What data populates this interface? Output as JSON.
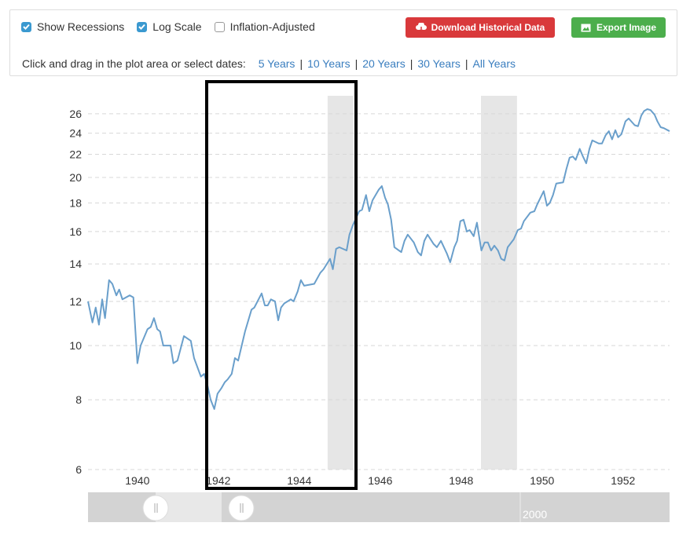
{
  "controls": {
    "checkboxes": [
      {
        "label": "Show Recessions",
        "checked": true
      },
      {
        "label": "Log Scale",
        "checked": true
      },
      {
        "label": "Inflation-Adjusted",
        "checked": false
      }
    ],
    "buttons": [
      {
        "label": "Download Historical Data",
        "color": "#d9393b"
      },
      {
        "label": "Export Image",
        "color": "#4cae4c"
      }
    ],
    "prompt": "Click and drag in the plot area or select dates:",
    "ranges": [
      "5 Years",
      "10 Years",
      "20 Years",
      "30 Years",
      "All Years"
    ],
    "separator": "|"
  },
  "chart_data": {
    "type": "line",
    "log_scale": true,
    "grid": true,
    "xlim": [
      1938.78,
      1953.15
    ],
    "xticks": [
      1940,
      1942,
      1944,
      1946,
      1948,
      1950,
      1952
    ],
    "ylim": [
      6,
      28
    ],
    "yticks": [
      6,
      8,
      10,
      12,
      14,
      16,
      18,
      20,
      22,
      24,
      26
    ],
    "recessions": [
      [
        1944.7,
        1945.34
      ],
      [
        1948.49,
        1949.38
      ]
    ],
    "recession_color": "#e6e6e6",
    "x": [
      1938.78,
      1938.89,
      1938.97,
      1939.05,
      1939.13,
      1939.2,
      1939.3,
      1939.38,
      1939.48,
      1939.55,
      1939.63,
      1939.81,
      1939.9,
      1940.0,
      1940.08,
      1940.25,
      1940.33,
      1940.41,
      1940.49,
      1940.56,
      1940.64,
      1940.82,
      1940.89,
      1940.99,
      1941.15,
      1941.32,
      1941.4,
      1941.57,
      1941.65,
      1941.73,
      1941.81,
      1941.9,
      1941.98,
      1942.08,
      1942.16,
      1942.23,
      1942.33,
      1942.41,
      1942.49,
      1942.66,
      1942.82,
      1942.89,
      1943.07,
      1943.15,
      1943.22,
      1943.3,
      1943.4,
      1943.48,
      1943.55,
      1943.63,
      1943.79,
      1943.86,
      1943.96,
      1944.04,
      1944.12,
      1944.37,
      1944.52,
      1944.6,
      1944.76,
      1944.83,
      1944.91,
      1944.99,
      1945.17,
      1945.24,
      1945.32,
      1945.48,
      1945.55,
      1945.65,
      1945.73,
      1945.81,
      1945.96,
      1946.04,
      1946.12,
      1946.19,
      1946.27,
      1946.35,
      1946.52,
      1946.6,
      1946.68,
      1946.83,
      1946.93,
      1947.01,
      1947.09,
      1947.17,
      1947.32,
      1947.4,
      1947.5,
      1947.65,
      1947.73,
      1947.83,
      1947.9,
      1947.98,
      1948.06,
      1948.14,
      1948.21,
      1948.31,
      1948.39,
      1948.5,
      1948.58,
      1948.66,
      1948.74,
      1948.82,
      1948.91,
      1948.99,
      1949.07,
      1949.15,
      1949.3,
      1949.4,
      1949.48,
      1949.55,
      1949.71,
      1949.81,
      1949.88,
      1950.04,
      1950.12,
      1950.19,
      1950.27,
      1950.35,
      1950.52,
      1950.6,
      1950.68,
      1950.76,
      1950.83,
      1950.93,
      1951.01,
      1951.09,
      1951.17,
      1951.24,
      1951.4,
      1951.48,
      1951.57,
      1951.65,
      1951.73,
      1951.81,
      1951.88,
      1951.96,
      1952.06,
      1952.14,
      1952.29,
      1952.37,
      1952.45,
      1952.52,
      1952.6,
      1952.68,
      1952.78,
      1952.85,
      1952.93,
      1953.01,
      1953.15
    ],
    "series": [
      {
        "color": "#6a9fcb",
        "values": [
          12.0,
          11.0,
          11.7,
          10.9,
          12.1,
          11.2,
          13.1,
          12.9,
          12.3,
          12.6,
          12.1,
          12.3,
          12.2,
          9.3,
          10.0,
          10.7,
          10.8,
          11.2,
          10.7,
          10.6,
          10.0,
          10.0,
          9.3,
          9.4,
          10.4,
          10.2,
          9.5,
          8.8,
          8.9,
          8.5,
          8.0,
          7.7,
          8.2,
          8.4,
          8.6,
          8.7,
          8.9,
          9.5,
          9.4,
          10.6,
          11.6,
          11.7,
          12.4,
          11.8,
          11.8,
          12.1,
          12.0,
          11.1,
          11.7,
          11.9,
          12.1,
          12.0,
          12.5,
          13.1,
          12.8,
          12.9,
          13.5,
          13.7,
          14.3,
          13.7,
          14.9,
          15.0,
          14.8,
          15.8,
          16.4,
          17.4,
          17.5,
          18.6,
          17.4,
          18.2,
          19.0,
          19.3,
          18.4,
          17.9,
          16.8,
          15.0,
          14.7,
          15.4,
          15.8,
          15.3,
          14.7,
          14.5,
          15.4,
          15.8,
          15.2,
          15.0,
          15.4,
          14.6,
          14.1,
          15.0,
          15.4,
          16.7,
          16.8,
          16.0,
          16.1,
          15.7,
          16.6,
          14.8,
          15.3,
          15.3,
          14.8,
          15.1,
          14.8,
          14.3,
          14.2,
          15.0,
          15.5,
          16.1,
          16.2,
          16.7,
          17.3,
          17.4,
          17.9,
          18.9,
          17.8,
          18.0,
          18.6,
          19.5,
          19.6,
          20.7,
          21.7,
          21.8,
          21.5,
          22.5,
          21.8,
          21.2,
          22.5,
          23.3,
          23.0,
          23.0,
          23.8,
          24.2,
          23.4,
          24.3,
          23.6,
          23.9,
          25.2,
          25.5,
          24.8,
          24.7,
          25.8,
          26.3,
          26.5,
          26.4,
          25.9,
          25.2,
          24.6,
          24.5,
          24.2
        ]
      }
    ]
  },
  "navigator": {
    "label": "2000"
  }
}
